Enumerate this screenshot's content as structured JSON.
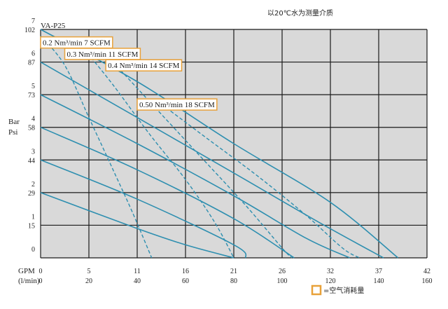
{
  "chart_data": {
    "type": "line",
    "model": "VA-P25",
    "note": "以20℃水为测量介质",
    "ylabel_units": [
      "Bar",
      "Psi"
    ],
    "xlabel_units": [
      "GPM",
      "(l/min)"
    ],
    "x_ticks_gpm": [
      "0",
      "5",
      "11",
      "16",
      "21",
      "26",
      "32",
      "37",
      "42"
    ],
    "x_ticks_lpm": [
      "0",
      "20",
      "40",
      "60",
      "80",
      "100",
      "120",
      "140",
      "160"
    ],
    "y_ticks_bar": [
      "0",
      "1",
      "2",
      "3",
      "4",
      "5",
      "6",
      "7"
    ],
    "y_ticks_psi": [
      "",
      "15",
      "29",
      "44",
      "58",
      "73",
      "87",
      "102"
    ],
    "xlim": [
      0,
      160
    ],
    "ylim": [
      0,
      7
    ],
    "grid": true,
    "legend": {
      "label": "=空气消耗量",
      "placement": "bottom-right",
      "swatch_color": "#e8a13a"
    },
    "colors": {
      "plot_bg": "#d9d9d9",
      "line": "#2e8fb0",
      "grid": "#1a1a1a",
      "label_border": "#e8a13a"
    },
    "air_labels": [
      {
        "text": "0.2 Nm³/min  7 SCFM",
        "x": 0,
        "y": 6.6
      },
      {
        "text": "0.3 Nm³/min  11 SCFM",
        "x": 10,
        "y": 6.25
      },
      {
        "text": "0.4 Nm³/min  14 SCFM",
        "x": 27,
        "y": 5.9
      },
      {
        "text": "0.50 Nm³/min 18 SCFM",
        "x": 40,
        "y": 4.7
      }
    ],
    "pressure_curves": [
      {
        "name": "7 bar",
        "points": [
          [
            0,
            7.0
          ],
          [
            40,
            5.4
          ],
          [
            80,
            3.5
          ],
          [
            120,
            1.7
          ],
          [
            148,
            0.0
          ]
        ]
      },
      {
        "name": "6 bar",
        "points": [
          [
            0,
            6.0
          ],
          [
            40,
            4.3
          ],
          [
            80,
            2.6
          ],
          [
            115,
            1.1
          ],
          [
            142,
            0.0
          ]
        ]
      },
      {
        "name": "5 bar",
        "points": [
          [
            0,
            5.0
          ],
          [
            40,
            3.5
          ],
          [
            80,
            1.9
          ],
          [
            110,
            0.6
          ],
          [
            128,
            0.0
          ]
        ]
      },
      {
        "name": "4 bar",
        "points": [
          [
            0,
            4.0
          ],
          [
            40,
            2.7
          ],
          [
            80,
            1.2
          ],
          [
            105,
            0.0
          ]
        ]
      },
      {
        "name": "3 bar",
        "points": [
          [
            0,
            3.0
          ],
          [
            40,
            1.8
          ],
          [
            80,
            0.4
          ],
          [
            85,
            0.0
          ]
        ]
      },
      {
        "name": "2 bar",
        "points": [
          [
            0,
            2.0
          ],
          [
            40,
            0.9
          ],
          [
            60,
            0.4
          ],
          [
            80,
            0.0
          ]
        ]
      }
    ],
    "air_curves": [
      {
        "name": "0.2 Nm³/min",
        "points": [
          [
            0,
            6.8
          ],
          [
            10,
            5.9
          ],
          [
            20,
            4.3
          ],
          [
            30,
            2.7
          ],
          [
            38,
            1.4
          ],
          [
            46,
            0.0
          ]
        ]
      },
      {
        "name": "0.3 Nm³/min",
        "points": [
          [
            18,
            6.4
          ],
          [
            30,
            5.3
          ],
          [
            45,
            3.8
          ],
          [
            60,
            2.4
          ],
          [
            72,
            1.1
          ],
          [
            80,
            0.0
          ]
        ]
      },
      {
        "name": "0.4 Nm³/min",
        "points": [
          [
            30,
            6.0
          ],
          [
            45,
            4.8
          ],
          [
            65,
            3.2
          ],
          [
            85,
            1.6
          ],
          [
            100,
            0.3
          ],
          [
            104,
            0.0
          ]
        ]
      },
      {
        "name": "0.50 Nm³/min",
        "points": [
          [
            52,
            4.6
          ],
          [
            70,
            3.6
          ],
          [
            90,
            2.5
          ],
          [
            110,
            1.3
          ],
          [
            125,
            0.3
          ],
          [
            132,
            0.0
          ]
        ]
      }
    ]
  }
}
